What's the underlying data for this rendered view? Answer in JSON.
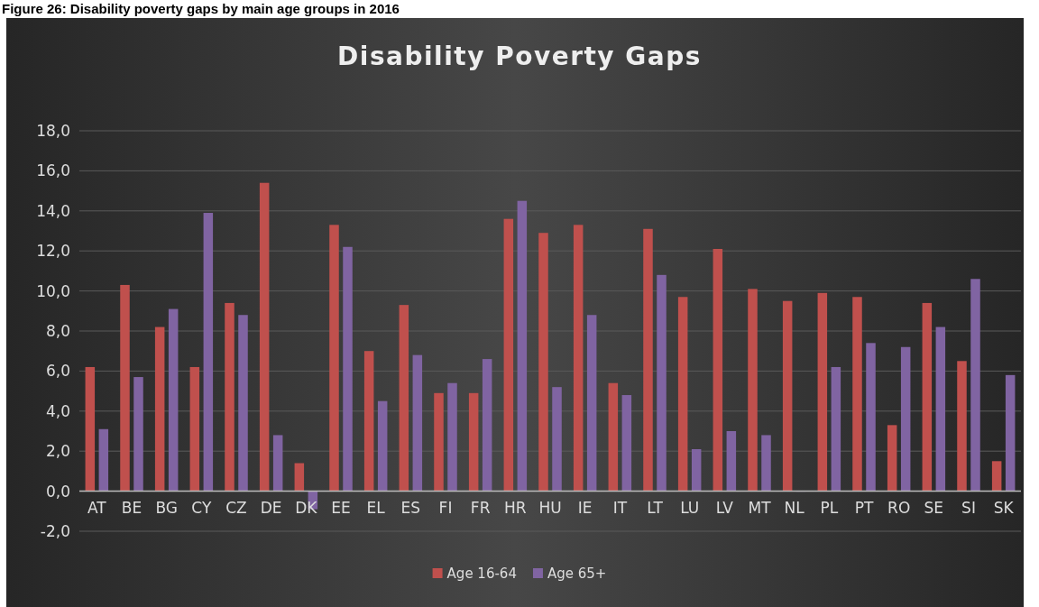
{
  "chart_data": {
    "type": "bar",
    "title": "Disability Poverty Gaps",
    "annotations": [
      "Figure 26: Disability poverty gaps by main age groups in 2016"
    ],
    "categories": [
      "AT",
      "BE",
      "BG",
      "CY",
      "CZ",
      "DE",
      "DK",
      "EE",
      "EL",
      "ES",
      "FI",
      "FR",
      "HR",
      "HU",
      "IE",
      "IT",
      "LT",
      "LU",
      "LV",
      "MT",
      "NL",
      "PL",
      "PT",
      "RO",
      "SE",
      "SI",
      "SK"
    ],
    "series": [
      {
        "name": "Age 16-64",
        "color": "#c0504d",
        "values": [
          6.2,
          10.3,
          8.2,
          6.2,
          9.4,
          15.4,
          1.4,
          13.3,
          7.0,
          9.3,
          4.9,
          4.9,
          13.6,
          12.9,
          13.3,
          5.4,
          13.1,
          9.7,
          12.1,
          10.1,
          9.5,
          9.9,
          9.7,
          3.3,
          9.4,
          6.5,
          1.5
        ]
      },
      {
        "name": "Age 65+",
        "color": "#8064a2",
        "values": [
          3.1,
          5.7,
          9.1,
          13.9,
          8.8,
          2.8,
          -0.9,
          12.2,
          4.5,
          6.8,
          5.4,
          6.6,
          14.5,
          5.2,
          8.8,
          4.8,
          10.8,
          2.1,
          3.0,
          2.8,
          0.0,
          6.2,
          7.4,
          7.2,
          8.2,
          10.6,
          5.8
        ]
      }
    ],
    "ylim": [
      -2,
      18
    ],
    "yticks": [
      {
        "value": -2,
        "label": "-2,0"
      },
      {
        "value": 0,
        "label": "0,0"
      },
      {
        "value": 2,
        "label": "2,0"
      },
      {
        "value": 4,
        "label": "4,0"
      },
      {
        "value": 6,
        "label": "6,0"
      },
      {
        "value": 8,
        "label": "8,0"
      },
      {
        "value": 10,
        "label": "10,0"
      },
      {
        "value": 12,
        "label": "12,0"
      },
      {
        "value": 14,
        "label": "14,0"
      },
      {
        "value": 16,
        "label": "16,0"
      },
      {
        "value": 18,
        "label": "18,0"
      }
    ],
    "grid": "y",
    "legend": "bottom"
  }
}
